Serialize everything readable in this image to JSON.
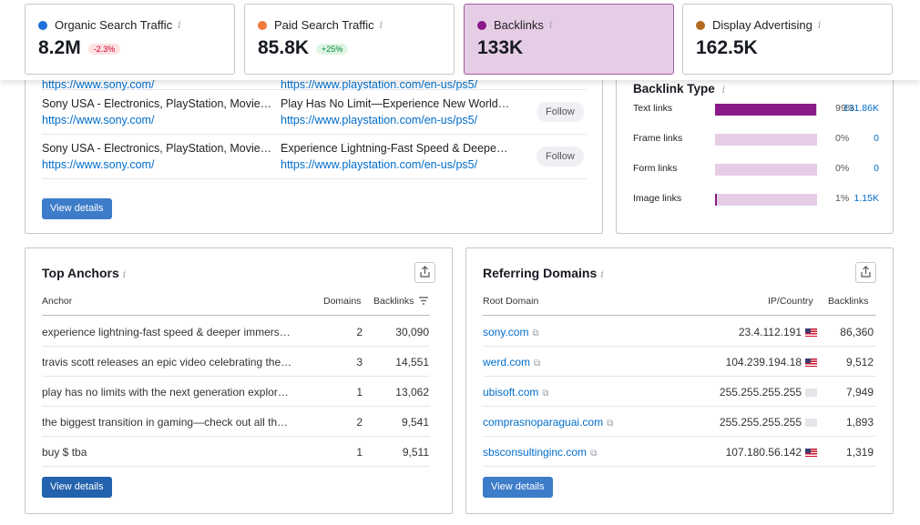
{
  "metrics": [
    {
      "label": "Organic Search Traffic",
      "value": "8.2M",
      "delta": "-2.3%",
      "color": "#1e6fd9",
      "info": "i"
    },
    {
      "label": "Paid Search Traffic",
      "value": "85.8K",
      "delta": "+25%",
      "color": "#f07b3a",
      "info": "i"
    },
    {
      "label": "Backlinks",
      "value": "133K",
      "delta": "",
      "color": "#8a1a87",
      "info": "i"
    },
    {
      "label": "Display Advertising",
      "value": "162.5K",
      "delta": "",
      "color": "#b36b1f",
      "info": "i"
    }
  ],
  "backlinks_table": {
    "rows": [
      {
        "source_title": "Sony USA - Electronics, PlayStation, Movie…",
        "source_url": "https://www.sony.com/",
        "target_title": "Play Has No Limit—Experience New World…",
        "target_url": "https://www.playstation.com/en-us/ps5/",
        "type": "Follow"
      },
      {
        "source_title": "Sony USA - Electronics, PlayStation, Movie…",
        "source_url": "https://www.sony.com/",
        "target_title": "Experience Lightning-Fast Speed & Deepe…",
        "target_url": "https://www.playstation.com/en-us/ps5/",
        "type": "Follow"
      }
    ],
    "view_details": "View details"
  },
  "backlink_type": {
    "title": "Backlink Type",
    "info": "i",
    "rows": [
      {
        "label": "Text links",
        "percent": "99%",
        "count": "131.86K",
        "fraction": 0.99
      },
      {
        "label": "Frame links",
        "percent": "0%",
        "count": "0",
        "fraction": 0
      },
      {
        "label": "Form links",
        "percent": "0%",
        "count": "0",
        "fraction": 0
      },
      {
        "label": "Image links",
        "percent": "1%",
        "count": "1.15K",
        "fraction": 0.01
      }
    ]
  },
  "top_anchors": {
    "title": "Top Anchors",
    "info": "i",
    "columns": {
      "anchor": "Anchor",
      "domains": "Domains",
      "backlinks": "Backlinks"
    },
    "rows": [
      {
        "anchor": "experience lightning-fast speed & deeper immers…",
        "domains": "2",
        "backlinks": "30,090"
      },
      {
        "anchor": "travis scott releases an epic video celebrating the…",
        "domains": "3",
        "backlinks": "14,551"
      },
      {
        "anchor": "play has no limits with the next generation explor…",
        "domains": "1",
        "backlinks": "13,062"
      },
      {
        "anchor": "the biggest transition in gaming—check out all th…",
        "domains": "2",
        "backlinks": "9,541"
      },
      {
        "anchor": "buy $ tba",
        "domains": "1",
        "backlinks": "9,511"
      }
    ],
    "view_details": "View details"
  },
  "referring_domains": {
    "title": "Referring Domains",
    "info": "i",
    "columns": {
      "root_domain": "Root Domain",
      "ip_country": "IP/Country",
      "backlinks": "Backlinks"
    },
    "rows": [
      {
        "domain": "sony.com",
        "ip": "23.4.112.191",
        "flag": "us",
        "backlinks": "86,360"
      },
      {
        "domain": "werd.com",
        "ip": "104.239.194.18",
        "flag": "us",
        "backlinks": "9,512"
      },
      {
        "domain": "ubisoft.com",
        "ip": "255.255.255.255",
        "flag": "grey",
        "backlinks": "7,949"
      },
      {
        "domain": "comprasnoparaguai.com",
        "ip": "255.255.255.255",
        "flag": "grey",
        "backlinks": "1,893"
      },
      {
        "domain": "sbsconsultinginc.com",
        "ip": "107.180.56.142",
        "flag": "us",
        "backlinks": "1,319"
      }
    ],
    "view_details": "View details"
  }
}
